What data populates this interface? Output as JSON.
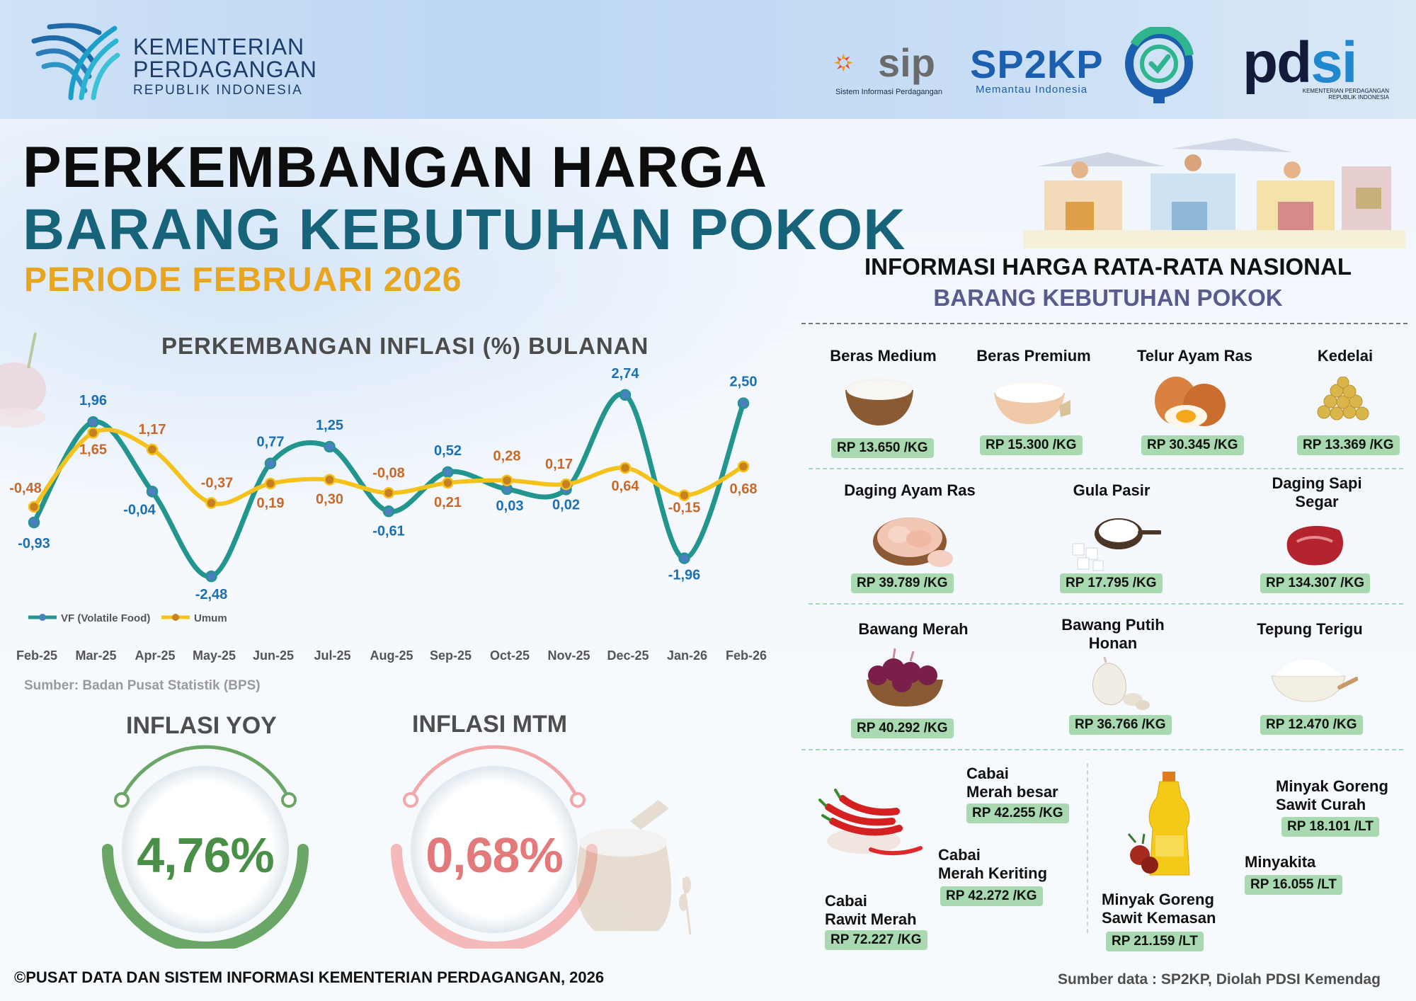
{
  "header": {
    "org_line1": "KEMENTERIAN",
    "org_line2": "PERDAGANGAN",
    "org_line3": "REPUBLIK INDONESIA",
    "sip_word": "sip",
    "sip_sub": "Sistem Informasi Perdagangan",
    "sp2kp_word": "SP2KP",
    "sp2kp_sub": "Memantau Indonesia",
    "pdsi_a": "pd",
    "pdsi_b": "si",
    "pdsi_sub": "KEMENTERIAN PERDAGANGAN REPUBLIK INDONESIA"
  },
  "titles": {
    "line1": "PERKEMBANGAN HARGA",
    "line2": "BARANG KEBUTUHAN POKOK",
    "period": "PERIODE FEBRUARI 2026"
  },
  "chart_data": {
    "type": "line",
    "title": "PERKEMBANGAN INFLASI (%) BULANAN",
    "categories": [
      "Feb-25",
      "Mar-25",
      "Apr-25",
      "May-25",
      "Jun-25",
      "Jul-25",
      "Aug-25",
      "Sep-25",
      "Oct-25",
      "Nov-25",
      "Dec-25",
      "Jan-26",
      "Feb-26"
    ],
    "series": [
      {
        "name": "VF (Volatile Food)",
        "color": "#22958e",
        "marker": "#4a7fc0",
        "values": [
          -0.93,
          1.96,
          -0.04,
          -2.48,
          0.77,
          1.25,
          -0.61,
          0.52,
          0.03,
          0.02,
          2.74,
          -1.96,
          2.5
        ],
        "labels": [
          "-0,93",
          "1,96",
          "-0,04",
          "-2,48",
          "0,77",
          "1,25",
          "-0,61",
          "0,52",
          "0,03",
          "0,02",
          "2,74",
          "-1,96",
          "2,50"
        ]
      },
      {
        "name": "Umum",
        "color": "#f5c21b",
        "marker": "#c7801f",
        "values": [
          -0.48,
          1.65,
          1.17,
          -0.37,
          0.19,
          0.3,
          -0.08,
          0.21,
          0.28,
          0.17,
          0.64,
          -0.15,
          0.68
        ],
        "labels": [
          "-0,48",
          "1,65",
          "1,17",
          "-0,37",
          "0,19",
          "0,30",
          "-0,08",
          "0,21",
          "0,28",
          "0,17",
          "0,64",
          "-0,15",
          "0,68"
        ]
      }
    ],
    "ylim": [
      -2.6,
      2.9
    ],
    "grid": false,
    "legend": "bottom-left",
    "source": "Sumber: Badan Pusat Statistik (BPS)"
  },
  "inflation": {
    "yoy_label": "INFLASI YOY",
    "yoy_value": "4,76%",
    "mtm_label": "INFLASI MTM",
    "mtm_value": "0,68%"
  },
  "prices": {
    "title": "INFORMASI HARGA RATA-RATA NASIONAL",
    "subtitle": "BARANG KEBUTUHAN POKOK",
    "items": [
      {
        "name": "Beras Medium",
        "price": "RP 13.650 /KG"
      },
      {
        "name": "Beras Premium",
        "price": "RP 15.300 /KG"
      },
      {
        "name": "Telur Ayam Ras",
        "price": "RP 30.345 /KG"
      },
      {
        "name": "Kedelai",
        "price": "RP 13.369 /KG"
      },
      {
        "name": "Daging Ayam Ras",
        "price": "RP 39.789 /KG"
      },
      {
        "name": "Gula Pasir",
        "price": "RP 17.795 /KG"
      },
      {
        "name": "Daging Sapi\nSegar",
        "price": "RP 134.307 /KG"
      },
      {
        "name": "Bawang Merah",
        "price": "RP 40.292 /KG"
      },
      {
        "name": "Bawang Putih\nHonan",
        "price": "RP 36.766 /KG"
      },
      {
        "name": "Tepung Terigu",
        "price": "RP 12.470 /KG"
      },
      {
        "name": "Cabai\nMerah besar",
        "price": "RP 42.255 /KG"
      },
      {
        "name": "Cabai\nMerah Keriting",
        "price": "RP 42.272 /KG"
      },
      {
        "name": "Cabai\nRawit Merah",
        "price": "RP 72.227 /KG"
      },
      {
        "name": "Minyak Goreng\nSawit Curah",
        "price": "RP 18.101 /LT"
      },
      {
        "name": "Minyakita",
        "price": "RP 16.055 /LT"
      },
      {
        "name": "Minyak Goreng\nSawit Kemasan",
        "price": "RP 21.159 /LT"
      }
    ]
  },
  "footer": {
    "copyright": "©PUSAT DATA DAN SISTEM INFORMASI KEMENTERIAN PERDAGANGAN, 2026",
    "source": "Sumber data : SP2KP, Diolah PDSI Kemendag"
  }
}
